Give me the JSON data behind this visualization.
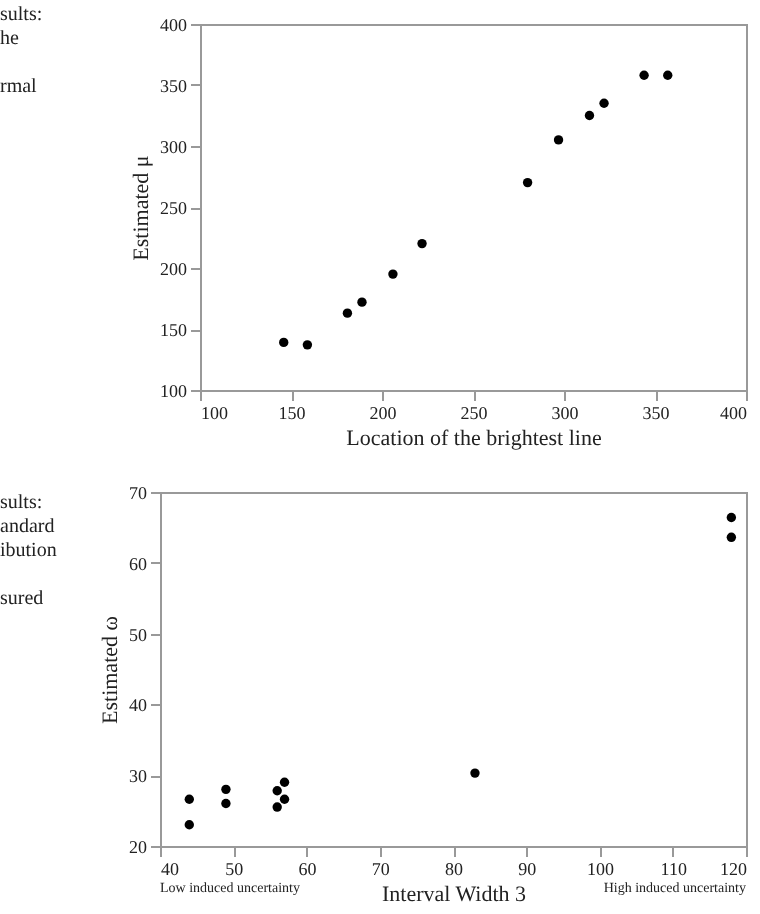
{
  "chart_data": [
    {
      "type": "scatter",
      "xlabel": "Location of the brightest line",
      "ylabel": "Estimated μ",
      "xlim": [
        100,
        400
      ],
      "xticks": [
        100,
        150,
        200,
        250,
        300,
        350,
        400
      ],
      "ylim": [
        100,
        400
      ],
      "yticks": [
        100,
        150,
        200,
        250,
        300,
        350,
        400
      ],
      "grid": false,
      "marker": "circle",
      "annotations": [
        "sults:\nhe\n\nrmal"
      ],
      "series": [
        {
          "color": "#000000",
          "x": [
            146,
            159,
            181,
            189,
            206,
            222,
            280,
            297,
            314,
            322,
            344,
            357
          ],
          "values": [
            139,
            137,
            163,
            172,
            195,
            220,
            270,
            305,
            325,
            335,
            358,
            358
          ]
        }
      ]
    },
    {
      "type": "scatter",
      "xlabel": "Interval  Width 3",
      "ylabel": "Estimated ω",
      "xlim": [
        40,
        120
      ],
      "xticks": [
        40,
        50,
        60,
        70,
        80,
        90,
        100,
        110,
        120
      ],
      "ylim": [
        20,
        70
      ],
      "yticks": [
        20,
        30,
        40,
        50,
        60,
        70
      ],
      "grid": false,
      "marker": "circle",
      "annotations": [
        "sults:\nandard\nibution\n\nsured",
        "Low induced uncertainty",
        "High induced uncertainty"
      ],
      "series": [
        {
          "color": "#000000",
          "x": [
            44,
            44,
            49,
            49,
            56,
            56,
            57,
            57,
            83,
            118,
            118
          ],
          "values": [
            23,
            26.6,
            28,
            26,
            27.8,
            25.5,
            29,
            26.6,
            30.3,
            66.4,
            63.6
          ]
        }
      ]
    }
  ]
}
